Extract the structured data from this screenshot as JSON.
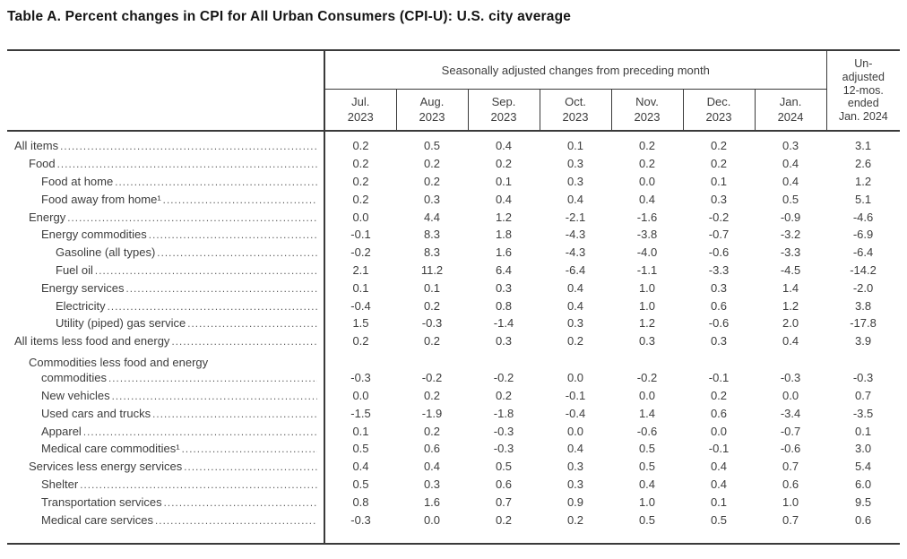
{
  "title": "Table A. Percent changes in CPI for All Urban Consumers (CPI-U): U.S. city average",
  "colors": {
    "ink": "#3d3d3d",
    "rule": "#3a3a3a",
    "title_ink": "#151515",
    "background": "#ffffff"
  },
  "table": {
    "group_header": "Seasonally adjusted changes from preceding month",
    "unadjusted_header": "Un-\nadjusted\n12-mos.\nended\nJan. 2024",
    "columns": [
      {
        "label": "Jul.\n2023"
      },
      {
        "label": "Aug.\n2023"
      },
      {
        "label": "Sep.\n2023"
      },
      {
        "label": "Oct.\n2023"
      },
      {
        "label": "Nov.\n2023"
      },
      {
        "label": "Dec.\n2023"
      },
      {
        "label": "Jan.\n2024"
      }
    ],
    "rows": [
      {
        "label": "All items",
        "indent": 0,
        "values": [
          "0.2",
          "0.5",
          "0.4",
          "0.1",
          "0.2",
          "0.2",
          "0.3",
          "3.1"
        ]
      },
      {
        "label": "Food",
        "indent": 1,
        "values": [
          "0.2",
          "0.2",
          "0.2",
          "0.3",
          "0.2",
          "0.2",
          "0.4",
          "2.6"
        ]
      },
      {
        "label": "Food at home",
        "indent": 2,
        "values": [
          "0.2",
          "0.2",
          "0.1",
          "0.3",
          "0.0",
          "0.1",
          "0.4",
          "1.2"
        ]
      },
      {
        "label": "Food away from home¹",
        "indent": 2,
        "values": [
          "0.2",
          "0.3",
          "0.4",
          "0.4",
          "0.4",
          "0.3",
          "0.5",
          "5.1"
        ]
      },
      {
        "label": "Energy",
        "indent": 1,
        "values": [
          "0.0",
          "4.4",
          "1.2",
          "-2.1",
          "-1.6",
          "-0.2",
          "-0.9",
          "-4.6"
        ]
      },
      {
        "label": "Energy commodities",
        "indent": 2,
        "values": [
          "-0.1",
          "8.3",
          "1.8",
          "-4.3",
          "-3.8",
          "-0.7",
          "-3.2",
          "-6.9"
        ]
      },
      {
        "label": "Gasoline (all types)",
        "indent": 3,
        "values": [
          "-0.2",
          "8.3",
          "1.6",
          "-4.3",
          "-4.0",
          "-0.6",
          "-3.3",
          "-6.4"
        ]
      },
      {
        "label": "Fuel oil",
        "indent": 3,
        "values": [
          "2.1",
          "11.2",
          "6.4",
          "-6.4",
          "-1.1",
          "-3.3",
          "-4.5",
          "-14.2"
        ]
      },
      {
        "label": "Energy services",
        "indent": 2,
        "values": [
          "0.1",
          "0.1",
          "0.3",
          "0.4",
          "1.0",
          "0.3",
          "1.4",
          "-2.0"
        ]
      },
      {
        "label": "Electricity",
        "indent": 3,
        "values": [
          "-0.4",
          "0.2",
          "0.8",
          "0.4",
          "1.0",
          "0.6",
          "1.2",
          "3.8"
        ]
      },
      {
        "label": "Utility (piped) gas service",
        "indent": 3,
        "values": [
          "1.5",
          "-0.3",
          "-1.4",
          "0.3",
          "1.2",
          "-0.6",
          "2.0",
          "-17.8"
        ]
      },
      {
        "label": "All items less food and energy",
        "indent": 0,
        "values": [
          "0.2",
          "0.2",
          "0.3",
          "0.2",
          "0.3",
          "0.3",
          "0.4",
          "3.9"
        ]
      },
      {
        "label": "Commodities less food and energy",
        "label2": "commodities",
        "indent": 1,
        "values": [
          "-0.3",
          "-0.2",
          "-0.2",
          "0.0",
          "-0.2",
          "-0.1",
          "-0.3",
          "-0.3"
        ]
      },
      {
        "label": "New vehicles",
        "indent": 2,
        "values": [
          "0.0",
          "0.2",
          "0.2",
          "-0.1",
          "0.0",
          "0.2",
          "0.0",
          "0.7"
        ]
      },
      {
        "label": "Used cars and trucks",
        "indent": 2,
        "values": [
          "-1.5",
          "-1.9",
          "-1.8",
          "-0.4",
          "1.4",
          "0.6",
          "-3.4",
          "-3.5"
        ]
      },
      {
        "label": "Apparel",
        "indent": 2,
        "values": [
          "0.1",
          "0.2",
          "-0.3",
          "0.0",
          "-0.6",
          "0.0",
          "-0.7",
          "0.1"
        ]
      },
      {
        "label": "Medical care commodities¹",
        "indent": 2,
        "values": [
          "0.5",
          "0.6",
          "-0.3",
          "0.4",
          "0.5",
          "-0.1",
          "-0.6",
          "3.0"
        ]
      },
      {
        "label": "Services less energy services",
        "indent": 1,
        "values": [
          "0.4",
          "0.4",
          "0.5",
          "0.3",
          "0.5",
          "0.4",
          "0.7",
          "5.4"
        ]
      },
      {
        "label": "Shelter",
        "indent": 2,
        "values": [
          "0.5",
          "0.3",
          "0.6",
          "0.3",
          "0.4",
          "0.4",
          "0.6",
          "6.0"
        ]
      },
      {
        "label": "Transportation services",
        "indent": 2,
        "values": [
          "0.8",
          "1.6",
          "0.7",
          "0.9",
          "1.0",
          "0.1",
          "1.0",
          "9.5"
        ]
      },
      {
        "label": "Medical care services",
        "indent": 2,
        "values": [
          "-0.3",
          "0.0",
          "0.2",
          "0.2",
          "0.5",
          "0.5",
          "0.7",
          "0.6"
        ]
      }
    ]
  }
}
